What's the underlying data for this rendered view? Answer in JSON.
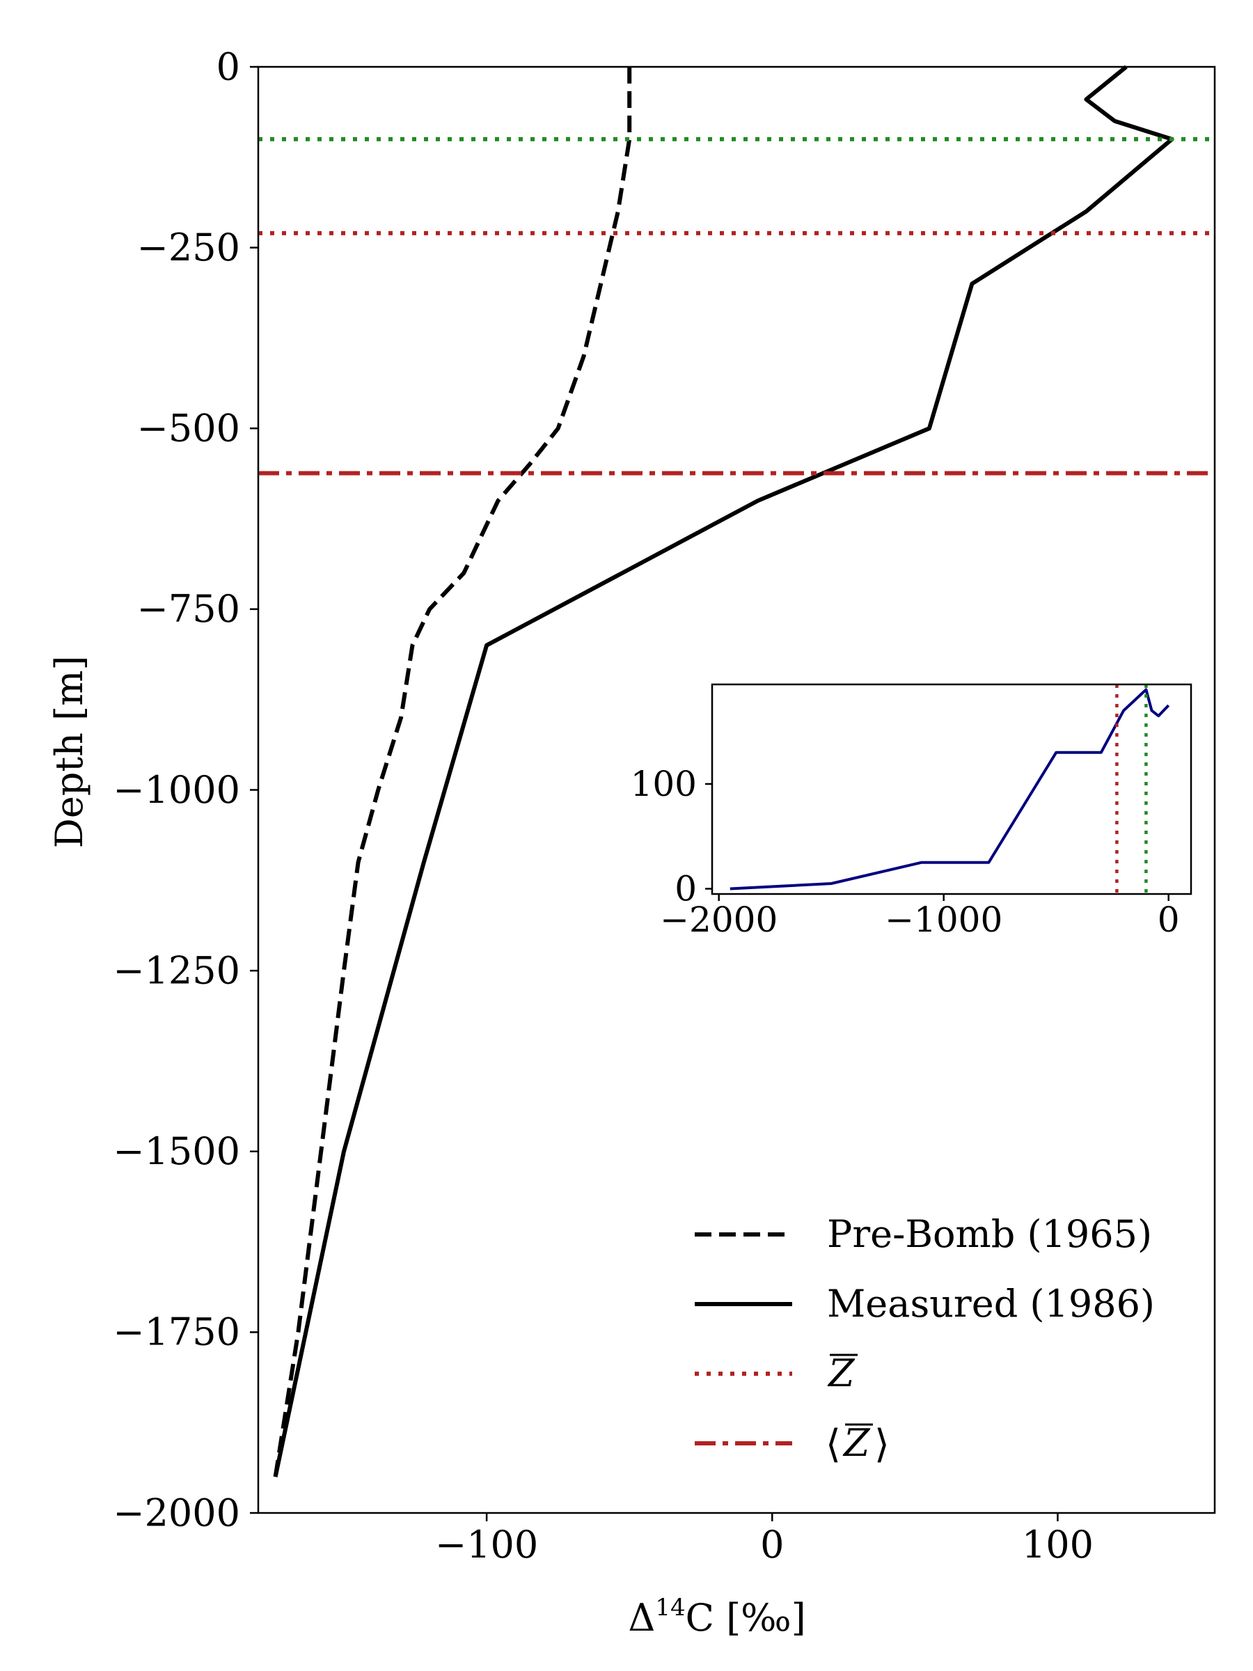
{
  "chart_data": [
    {
      "type": "line",
      "title": "",
      "xlabel": "Δ¹⁴C [‰]",
      "xlabel_parts": {
        "base": "Δ",
        "sup": "14",
        "rest": "C [‰]"
      },
      "ylabel": "Depth [m]",
      "xlim": [
        -180,
        155
      ],
      "ylim": [
        -2000,
        0
      ],
      "xticks": [
        -100,
        0,
        100
      ],
      "yticks": [
        0,
        -250,
        -500,
        -750,
        -1000,
        -1250,
        -1500,
        -1750,
        -2000
      ],
      "grid": false,
      "legend_position": "lower-right",
      "series": [
        {
          "name": "Pre-Bomb (1965)",
          "style": "dashed",
          "color": "#000000",
          "x": [
            -50,
            -50,
            -50,
            -52,
            -54,
            -60,
            -66,
            -75,
            -85,
            -96,
            -108,
            -120,
            -126,
            -130,
            -138,
            -145,
            -150,
            -158,
            -166,
            -174
          ],
          "y": [
            0,
            -50,
            -100,
            -150,
            -200,
            -300,
            -400,
            -500,
            -550,
            -600,
            -700,
            -750,
            -800,
            -900,
            -1000,
            -1100,
            -1250,
            -1500,
            -1750,
            -1950
          ]
        },
        {
          "name": "Measured (1986)",
          "style": "solid",
          "color": "#000000",
          "x": [
            124,
            110,
            120,
            140,
            110,
            70,
            55,
            -5,
            -100,
            -122,
            -150,
            -174
          ],
          "y": [
            0,
            -45,
            -75,
            -100,
            -200,
            -300,
            -500,
            -600,
            -800,
            -1100,
            -1500,
            -1950
          ]
        }
      ],
      "reference_lines": [
        {
          "name": "Z̄",
          "legend_label": "Z",
          "legend_overline": true,
          "style": "dotted",
          "color": "#b22222",
          "y": -230
        },
        {
          "name": "⟨Z̄⟩",
          "legend_label": "Z",
          "legend_brackets": true,
          "legend_overline": true,
          "style": "dashdot",
          "color": "#b22222",
          "y": -562
        },
        {
          "name": "",
          "style": "dotted",
          "color": "#228b22",
          "y": -100,
          "in_legend": false
        }
      ]
    },
    {
      "type": "line",
      "title": "",
      "xlabel": "",
      "ylabel": "",
      "xlim": [
        -2030,
        100
      ],
      "ylim": [
        -5,
        195
      ],
      "xticks": [
        -2000,
        -1000,
        0
      ],
      "yticks": [
        0,
        100
      ],
      "grid": false,
      "series": [
        {
          "name": "",
          "style": "solid",
          "color": "#000080",
          "x": [
            -1950,
            -1500,
            -1100,
            -800,
            -500,
            -300,
            -200,
            -100,
            -75,
            -45,
            0
          ],
          "y": [
            0,
            5,
            25,
            25,
            130,
            130,
            170,
            190,
            170,
            165,
            175
          ]
        }
      ],
      "reference_lines": [
        {
          "style": "dotted",
          "color": "#b22222",
          "x": -230
        },
        {
          "style": "dotted",
          "color": "#228b22",
          "x": -100
        }
      ]
    }
  ],
  "tick_format": {
    "minus": "−"
  }
}
